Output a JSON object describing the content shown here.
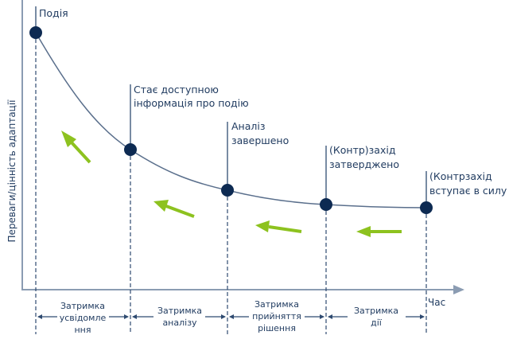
{
  "y_axis_label": "Переваги/цінність адаптації",
  "x_axis_label": "Час",
  "events": [
    {
      "label_lines": [
        "Подія"
      ]
    },
    {
      "label_lines": [
        "Стає доступною",
        "інформація про подію"
      ]
    },
    {
      "label_lines": [
        "Аналіз",
        "завершено"
      ]
    },
    {
      "label_lines": [
        "(Контр)захід",
        "затверджено"
      ]
    },
    {
      "label_lines": [
        "(Контрзахід",
        "вступає в силу"
      ]
    }
  ],
  "delays": [
    {
      "label_lines": [
        "Затримка",
        "усвідомле",
        "ння"
      ]
    },
    {
      "label_lines": [
        "Затримка",
        "аналізу"
      ]
    },
    {
      "label_lines": [
        "Затримка",
        "прийняття",
        "рішення"
      ]
    },
    {
      "label_lines": [
        "Затримка",
        "дії"
      ]
    }
  ],
  "colors": {
    "points": "#0d2a52",
    "arrows": "#8dc21f",
    "axis": "#8b9cb2"
  }
}
